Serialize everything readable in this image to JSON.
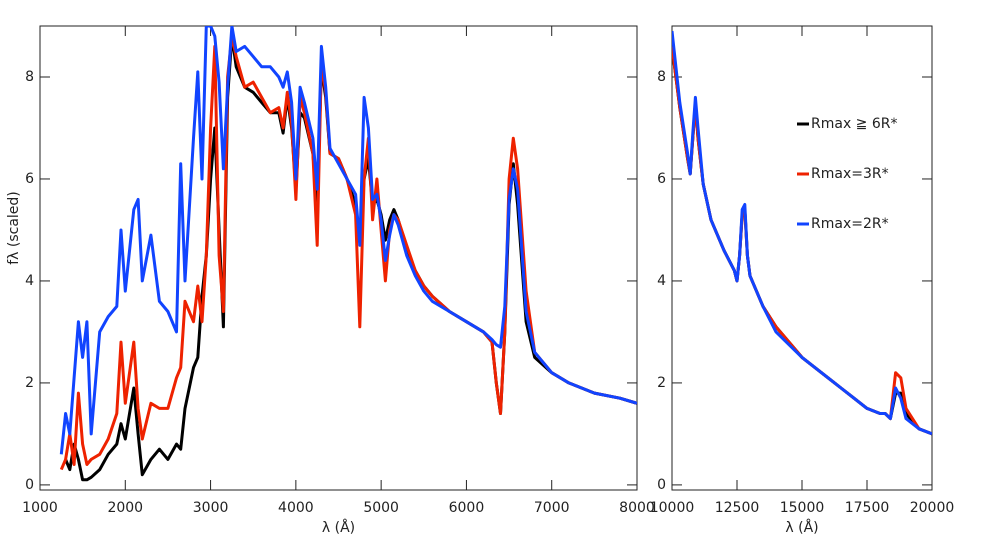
{
  "chart_data": [
    {
      "type": "line",
      "x_label": "λ (Å)",
      "y_label": "fλ (scaled)",
      "xlim": [
        1000,
        8000
      ],
      "ylim": [
        -0.1,
        9
      ],
      "xticks": [
        1000,
        2000,
        3000,
        4000,
        5000,
        6000,
        7000,
        8000
      ],
      "yticks": [
        0,
        2,
        4,
        6,
        8
      ],
      "x": [
        1250,
        1300,
        1350,
        1400,
        1450,
        1500,
        1550,
        1600,
        1700,
        1800,
        1900,
        1950,
        2000,
        2100,
        2150,
        2200,
        2300,
        2400,
        2500,
        2600,
        2650,
        2700,
        2800,
        2850,
        2900,
        2950,
        3000,
        3050,
        3100,
        3150,
        3200,
        3250,
        3300,
        3400,
        3500,
        3600,
        3700,
        3800,
        3850,
        3900,
        3950,
        4000,
        4050,
        4100,
        4200,
        4250,
        4300,
        4350,
        4400,
        4500,
        4600,
        4700,
        4750,
        4800,
        4850,
        4900,
        4950,
        5000,
        5050,
        5100,
        5150,
        5200,
        5300,
        5400,
        5500,
        5600,
        5800,
        6000,
        6200,
        6300,
        6350,
        6400,
        6450,
        6500,
        6550,
        6600,
        6700,
        6800,
        7000,
        7200,
        7500,
        7800,
        8000
      ],
      "series": [
        {
          "color": "#000000",
          "values": [
            null,
            0.5,
            0.3,
            0.8,
            0.5,
            0.1,
            0.1,
            0.15,
            0.3,
            0.6,
            0.8,
            1.2,
            0.9,
            1.9,
            1.0,
            0.2,
            0.5,
            0.7,
            0.5,
            0.8,
            0.7,
            1.5,
            2.3,
            2.5,
            3.7,
            4.5,
            6.0,
            7.0,
            5.0,
            3.1,
            7.6,
            8.8,
            8.2,
            7.8,
            7.7,
            7.5,
            7.3,
            7.3,
            6.9,
            7.6,
            7.0,
            5.8,
            7.3,
            7.2,
            6.5,
            5.5,
            8.2,
            7.6,
            6.5,
            6.4,
            6.0,
            5.5,
            4.8,
            6.0,
            6.4,
            5.5,
            5.6,
            5.3,
            4.8,
            5.2,
            5.4,
            5.2,
            4.6,
            4.2,
            3.9,
            3.7,
            3.4,
            3.2,
            3.0,
            2.8,
            2.0,
            1.4,
            3.0,
            5.5,
            6.3,
            5.5,
            3.2,
            2.5,
            2.2,
            2.0,
            1.8,
            1.7,
            1.6
          ]
        },
        {
          "color": "#ee2200",
          "values": [
            0.3,
            0.5,
            1.0,
            0.4,
            1.8,
            0.8,
            0.4,
            0.5,
            0.6,
            0.9,
            1.4,
            2.8,
            1.6,
            2.8,
            1.5,
            0.9,
            1.6,
            1.5,
            1.5,
            2.1,
            2.3,
            3.6,
            3.2,
            3.9,
            3.2,
            4.5,
            7.0,
            8.6,
            4.5,
            3.4,
            8.0,
            8.8,
            8.4,
            7.8,
            7.9,
            7.6,
            7.3,
            7.4,
            7.0,
            7.7,
            7.1,
            5.6,
            7.6,
            7.3,
            6.5,
            4.7,
            8.3,
            7.7,
            6.5,
            6.4,
            6.0,
            5.3,
            3.1,
            6.0,
            6.8,
            5.2,
            6.0,
            5.0,
            4.0,
            5.0,
            5.3,
            5.2,
            4.7,
            4.2,
            3.9,
            3.7,
            3.4,
            3.2,
            3.0,
            2.8,
            2.0,
            1.4,
            3.0,
            6.0,
            6.8,
            6.2,
            3.8,
            2.6,
            2.2,
            2.0,
            1.8,
            1.7,
            1.6
          ]
        },
        {
          "color": "#1144ff",
          "values": [
            0.6,
            1.4,
            1.0,
            2.1,
            3.2,
            2.5,
            3.2,
            1.0,
            3.0,
            3.3,
            3.5,
            5.0,
            3.8,
            5.4,
            5.6,
            4.0,
            4.9,
            3.6,
            3.4,
            3.0,
            6.3,
            4.0,
            6.8,
            8.1,
            6.0,
            9.0,
            9.0,
            8.8,
            7.9,
            6.2,
            7.8,
            9.0,
            8.5,
            8.6,
            8.4,
            8.2,
            8.2,
            8.0,
            7.8,
            8.1,
            7.5,
            6.0,
            7.8,
            7.5,
            6.8,
            5.8,
            8.6,
            7.8,
            6.6,
            6.3,
            6.0,
            5.7,
            4.7,
            7.6,
            7.0,
            5.6,
            5.7,
            5.2,
            4.4,
            4.9,
            5.3,
            5.1,
            4.5,
            4.1,
            3.8,
            3.6,
            3.4,
            3.2,
            3.0,
            2.85,
            2.75,
            2.7,
            3.5,
            5.6,
            6.2,
            5.8,
            3.4,
            2.6,
            2.2,
            2.0,
            1.8,
            1.7,
            1.6
          ]
        }
      ]
    },
    {
      "type": "line",
      "x_label": "λ (Å)",
      "legend": "upper right",
      "xlim": [
        10000,
        20000
      ],
      "ylim": [
        -0.1,
        9
      ],
      "xticks": [
        10000,
        12500,
        15000,
        17500,
        20000
      ],
      "yticks": [
        0,
        2,
        4,
        6,
        8
      ],
      "x": [
        10000,
        10300,
        10600,
        10700,
        10800,
        10900,
        11000,
        11200,
        11500,
        12000,
        12400,
        12500,
        12600,
        12700,
        12800,
        12900,
        13000,
        13500,
        14000,
        15000,
        16000,
        16500,
        17000,
        17500,
        18000,
        18200,
        18400,
        18600,
        18800,
        19000,
        19500,
        20000
      ],
      "series": [
        {
          "name": "Rmax ≧ 6R*",
          "color": "#000000",
          "values": [
            8.6,
            7.4,
            6.4,
            6.1,
            6.8,
            7.5,
            6.8,
            5.9,
            5.2,
            4.6,
            4.2,
            4.0,
            4.5,
            5.3,
            5.4,
            4.5,
            4.1,
            3.5,
            3.1,
            2.5,
            2.1,
            1.9,
            1.7,
            1.5,
            1.4,
            1.4,
            1.3,
            1.8,
            1.8,
            1.4,
            1.1,
            1.0
          ]
        },
        {
          "name": "Rmax=3R*",
          "color": "#ee2200",
          "values": [
            8.6,
            7.4,
            6.4,
            6.1,
            6.8,
            7.5,
            6.8,
            5.9,
            5.2,
            4.6,
            4.2,
            4.0,
            4.5,
            5.3,
            5.4,
            4.5,
            4.1,
            3.5,
            3.1,
            2.5,
            2.1,
            1.9,
            1.7,
            1.5,
            1.4,
            1.4,
            1.3,
            2.2,
            2.1,
            1.5,
            1.1,
            1.0
          ]
        },
        {
          "name": "Rmax=2R*",
          "color": "#1144ff",
          "values": [
            8.9,
            7.5,
            6.5,
            6.1,
            6.9,
            7.6,
            7.0,
            5.9,
            5.2,
            4.6,
            4.2,
            4.0,
            4.5,
            5.4,
            5.5,
            4.5,
            4.1,
            3.5,
            3.0,
            2.5,
            2.1,
            1.9,
            1.7,
            1.5,
            1.4,
            1.4,
            1.3,
            1.9,
            1.7,
            1.3,
            1.1,
            1.0
          ]
        }
      ]
    }
  ]
}
